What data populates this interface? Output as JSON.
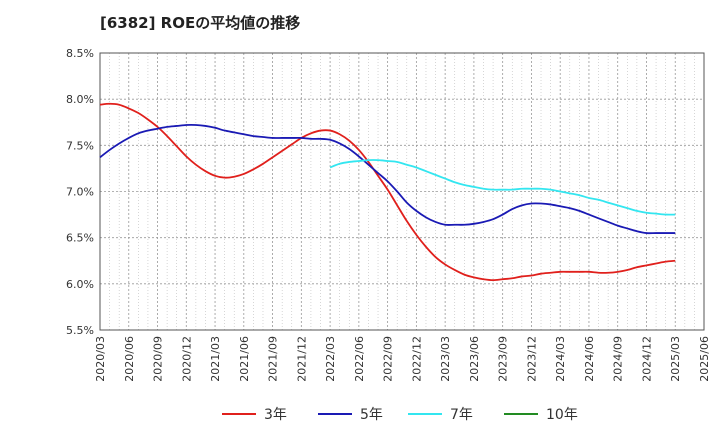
{
  "chart_data": {
    "type": "line",
    "title": "[6382]  ROEの平均値の推移",
    "ylim": [
      5.5,
      8.5
    ],
    "y_ticks": [
      "8.5%",
      "8.0%",
      "7.5%",
      "7.0%",
      "6.5%",
      "6.0%",
      "5.5%"
    ],
    "y_tick_values": [
      8.5,
      8.0,
      7.5,
      7.0,
      6.5,
      6.0,
      5.5
    ],
    "x_ticks": [
      "2020/03",
      "2020/06",
      "2020/09",
      "2020/12",
      "2021/03",
      "2021/06",
      "2021/09",
      "2021/12",
      "2022/03",
      "2022/06",
      "2022/09",
      "2022/12",
      "2023/03",
      "2023/06",
      "2023/09",
      "2023/12",
      "2024/03",
      "2024/06",
      "2024/09",
      "2024/12",
      "2025/03",
      "2025/06"
    ],
    "grid": true,
    "legend_placement": "bottom",
    "series": [
      {
        "name": "3年",
        "color": "#e0201c",
        "x": [
          0,
          0.3333,
          0.6667,
          1,
          1.3333,
          1.6667,
          2,
          2.3333,
          2.6667,
          3,
          3.3333,
          3.6667,
          4,
          4.3333,
          4.6667,
          5,
          5.3333,
          5.6667,
          6,
          6.3333,
          6.6667,
          7,
          7.3333,
          7.6667,
          8,
          8.3333,
          8.6667,
          9,
          9.3333,
          9.6667,
          10,
          10.3333,
          10.6667,
          11,
          11.3333,
          11.6667,
          12,
          12.3333,
          12.6667,
          13,
          13.3333,
          13.6667,
          14,
          14.3333,
          14.6667,
          15,
          15.3333,
          15.6667,
          16,
          16.3333,
          16.6667,
          17,
          17.3333,
          17.6667,
          18,
          18.3333,
          18.6667,
          19,
          19.3333,
          19.6667,
          20
        ],
        "values": [
          7.94,
          7.95,
          7.94,
          7.9,
          7.85,
          7.78,
          7.7,
          7.6,
          7.49,
          7.38,
          7.29,
          7.22,
          7.17,
          7.15,
          7.16,
          7.19,
          7.24,
          7.3,
          7.37,
          7.44,
          7.51,
          7.58,
          7.63,
          7.66,
          7.66,
          7.62,
          7.55,
          7.45,
          7.32,
          7.17,
          7.02,
          6.85,
          6.68,
          6.53,
          6.4,
          6.29,
          6.21,
          6.15,
          6.1,
          6.07,
          6.05,
          6.04,
          6.05,
          6.06,
          6.08,
          6.09,
          6.11,
          6.12,
          6.13,
          6.13,
          6.13,
          6.13,
          6.12,
          6.12,
          6.13,
          6.15,
          6.18,
          6.2,
          6.22,
          6.24,
          6.25
        ]
      },
      {
        "name": "5年",
        "color": "#1a1ab4",
        "x": [
          0,
          0.3333,
          0.6667,
          1,
          1.3333,
          1.6667,
          2,
          2.3333,
          2.6667,
          3,
          3.3333,
          3.6667,
          4,
          4.3333,
          4.6667,
          5,
          5.3333,
          5.6667,
          6,
          6.3333,
          6.6667,
          7,
          7.3333,
          7.6667,
          8,
          8.3333,
          8.6667,
          9,
          9.3333,
          9.6667,
          10,
          10.3333,
          10.6667,
          11,
          11.3333,
          11.6667,
          12,
          12.3333,
          12.6667,
          13,
          13.3333,
          13.6667,
          14,
          14.3333,
          14.6667,
          15,
          15.3333,
          15.6667,
          16,
          16.3333,
          16.6667,
          17,
          17.3333,
          17.6667,
          18,
          18.3333,
          18.6667,
          19,
          19.3333,
          19.6667,
          20
        ],
        "values": [
          7.37,
          7.45,
          7.52,
          7.58,
          7.63,
          7.66,
          7.68,
          7.7,
          7.71,
          7.72,
          7.72,
          7.71,
          7.69,
          7.66,
          7.64,
          7.62,
          7.6,
          7.59,
          7.58,
          7.58,
          7.58,
          7.58,
          7.57,
          7.57,
          7.56,
          7.52,
          7.46,
          7.38,
          7.29,
          7.2,
          7.11,
          7.0,
          6.88,
          6.79,
          6.72,
          6.67,
          6.64,
          6.64,
          6.64,
          6.65,
          6.67,
          6.7,
          6.75,
          6.81,
          6.85,
          6.87,
          6.87,
          6.86,
          6.84,
          6.82,
          6.79,
          6.75,
          6.71,
          6.67,
          6.63,
          6.6,
          6.57,
          6.55,
          6.55,
          6.55,
          6.55
        ]
      },
      {
        "name": "7年",
        "color": "#33e6f0",
        "x": [
          8,
          8.3333,
          8.6667,
          9,
          9.3333,
          9.6667,
          10,
          10.3333,
          10.6667,
          11,
          11.3333,
          11.6667,
          12,
          12.3333,
          12.6667,
          13,
          13.3333,
          13.6667,
          14,
          14.3333,
          14.6667,
          15,
          15.3333,
          15.6667,
          16,
          16.3333,
          16.6667,
          17,
          17.3333,
          17.6667,
          18,
          18.3333,
          18.6667,
          19,
          19.3333,
          19.6667,
          20
        ],
        "values": [
          7.26,
          7.3,
          7.32,
          7.33,
          7.34,
          7.34,
          7.33,
          7.32,
          7.29,
          7.26,
          7.22,
          7.18,
          7.14,
          7.1,
          7.07,
          7.05,
          7.03,
          7.02,
          7.02,
          7.02,
          7.03,
          7.03,
          7.03,
          7.02,
          7.0,
          6.98,
          6.96,
          6.93,
          6.91,
          6.88,
          6.85,
          6.82,
          6.79,
          6.77,
          6.76,
          6.75,
          6.75
        ]
      },
      {
        "name": "10年",
        "color": "#228b22",
        "x": [],
        "values": []
      }
    ]
  }
}
